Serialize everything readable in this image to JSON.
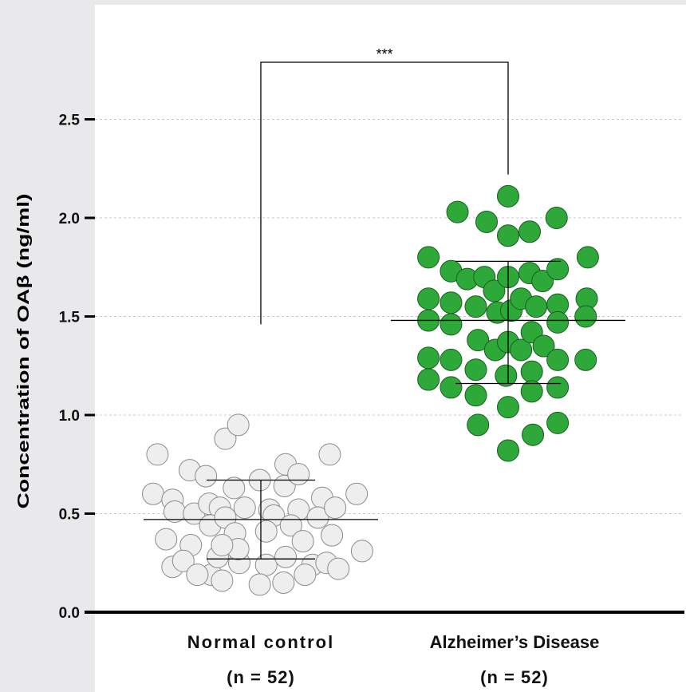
{
  "chart_data": {
    "type": "scatter",
    "title": "",
    "ylabel": "Concentration  of  OAβ  (ng/ml)",
    "xlabel": "",
    "ylim": [
      0,
      2.8
    ],
    "yticks": [
      0.0,
      0.5,
      1.0,
      1.5,
      2.0,
      2.5
    ],
    "ytick_labels": [
      "0.0",
      "0.5",
      "1.0",
      "1.5",
      "2.0",
      "2.5"
    ],
    "grid": true,
    "significance": "***",
    "significance_bracket_ends": [
      1.46,
      2.22
    ],
    "groups": [
      {
        "label": "Normal control",
        "n_label": "(n = 52)",
        "color": "#eeeeee",
        "mean": 0.47,
        "sd_upper": 0.67,
        "sd_lower": 0.27,
        "points": [
          [
            -0.96,
            0.8
          ],
          [
            -0.66,
            0.72
          ],
          [
            -0.33,
            0.88
          ],
          [
            -0.21,
            0.95
          ],
          [
            0.23,
            0.75
          ],
          [
            0.64,
            0.8
          ],
          [
            -1.0,
            0.6
          ],
          [
            -0.82,
            0.57
          ],
          [
            -0.51,
            0.69
          ],
          [
            -0.25,
            0.63
          ],
          [
            -0.01,
            0.67
          ],
          [
            0.22,
            0.64
          ],
          [
            0.35,
            0.7
          ],
          [
            0.57,
            0.58
          ],
          [
            0.89,
            0.6
          ],
          [
            -0.8,
            0.51
          ],
          [
            -0.62,
            0.5
          ],
          [
            -0.48,
            0.55
          ],
          [
            -0.38,
            0.53
          ],
          [
            -0.15,
            0.53
          ],
          [
            0.08,
            0.52
          ],
          [
            0.12,
            0.49
          ],
          [
            0.35,
            0.52
          ],
          [
            0.53,
            0.48
          ],
          [
            0.69,
            0.53
          ],
          [
            -0.88,
            0.37
          ],
          [
            -0.65,
            0.34
          ],
          [
            -0.47,
            0.44
          ],
          [
            -0.33,
            0.48
          ],
          [
            -0.24,
            0.4
          ],
          [
            0.05,
            0.41
          ],
          [
            0.28,
            0.44
          ],
          [
            0.39,
            0.36
          ],
          [
            0.66,
            0.39
          ],
          [
            0.94,
            0.31
          ],
          [
            -0.82,
            0.23
          ],
          [
            -0.72,
            0.26
          ],
          [
            -0.46,
            0.19
          ],
          [
            -0.4,
            0.28
          ],
          [
            -0.2,
            0.25
          ],
          [
            0.05,
            0.24
          ],
          [
            0.23,
            0.28
          ],
          [
            0.48,
            0.24
          ],
          [
            0.61,
            0.25
          ],
          [
            0.72,
            0.22
          ],
          [
            -0.59,
            0.19
          ],
          [
            -0.36,
            0.16
          ],
          [
            -0.01,
            0.14
          ],
          [
            0.21,
            0.15
          ],
          [
            0.41,
            0.19
          ],
          [
            -0.21,
            0.32
          ],
          [
            -0.36,
            0.34
          ]
        ]
      },
      {
        "label": "Alzheimer’s Disease",
        "n_label": "(n = 52)",
        "color": "#2fa83a",
        "mean": 1.48,
        "sd_upper": 1.78,
        "sd_lower": 1.16,
        "points": [
          [
            0.0,
            2.11
          ],
          [
            -0.47,
            2.03
          ],
          [
            -0.2,
            1.98
          ],
          [
            0.0,
            1.91
          ],
          [
            0.2,
            1.93
          ],
          [
            0.45,
            2.0
          ],
          [
            -0.74,
            1.8
          ],
          [
            -0.53,
            1.73
          ],
          [
            -0.38,
            1.69
          ],
          [
            -0.22,
            1.7
          ],
          [
            -0.13,
            1.63
          ],
          [
            0.0,
            1.7
          ],
          [
            0.2,
            1.72
          ],
          [
            0.32,
            1.68
          ],
          [
            0.46,
            1.74
          ],
          [
            0.74,
            1.8
          ],
          [
            -0.74,
            1.59
          ],
          [
            -0.53,
            1.57
          ],
          [
            -0.3,
            1.55
          ],
          [
            -0.1,
            1.52
          ],
          [
            0.03,
            1.53
          ],
          [
            0.12,
            1.59
          ],
          [
            0.26,
            1.55
          ],
          [
            0.46,
            1.56
          ],
          [
            0.73,
            1.59
          ],
          [
            -0.74,
            1.48
          ],
          [
            -0.53,
            1.46
          ],
          [
            -0.28,
            1.38
          ],
          [
            -0.12,
            1.33
          ],
          [
            0.0,
            1.37
          ],
          [
            0.12,
            1.33
          ],
          [
            0.22,
            1.42
          ],
          [
            0.33,
            1.35
          ],
          [
            0.46,
            1.47
          ],
          [
            0.72,
            1.5
          ],
          [
            -0.74,
            1.29
          ],
          [
            -0.53,
            1.28
          ],
          [
            -0.3,
            1.23
          ],
          [
            -0.02,
            1.2
          ],
          [
            0.22,
            1.22
          ],
          [
            0.46,
            1.28
          ],
          [
            0.72,
            1.28
          ],
          [
            -0.74,
            1.18
          ],
          [
            -0.53,
            1.14
          ],
          [
            -0.3,
            1.1
          ],
          [
            0.0,
            1.04
          ],
          [
            0.22,
            1.12
          ],
          [
            0.46,
            1.14
          ],
          [
            -0.28,
            0.95
          ],
          [
            0.23,
            0.9
          ],
          [
            0.46,
            0.96
          ],
          [
            0.0,
            0.82
          ]
        ]
      }
    ]
  }
}
